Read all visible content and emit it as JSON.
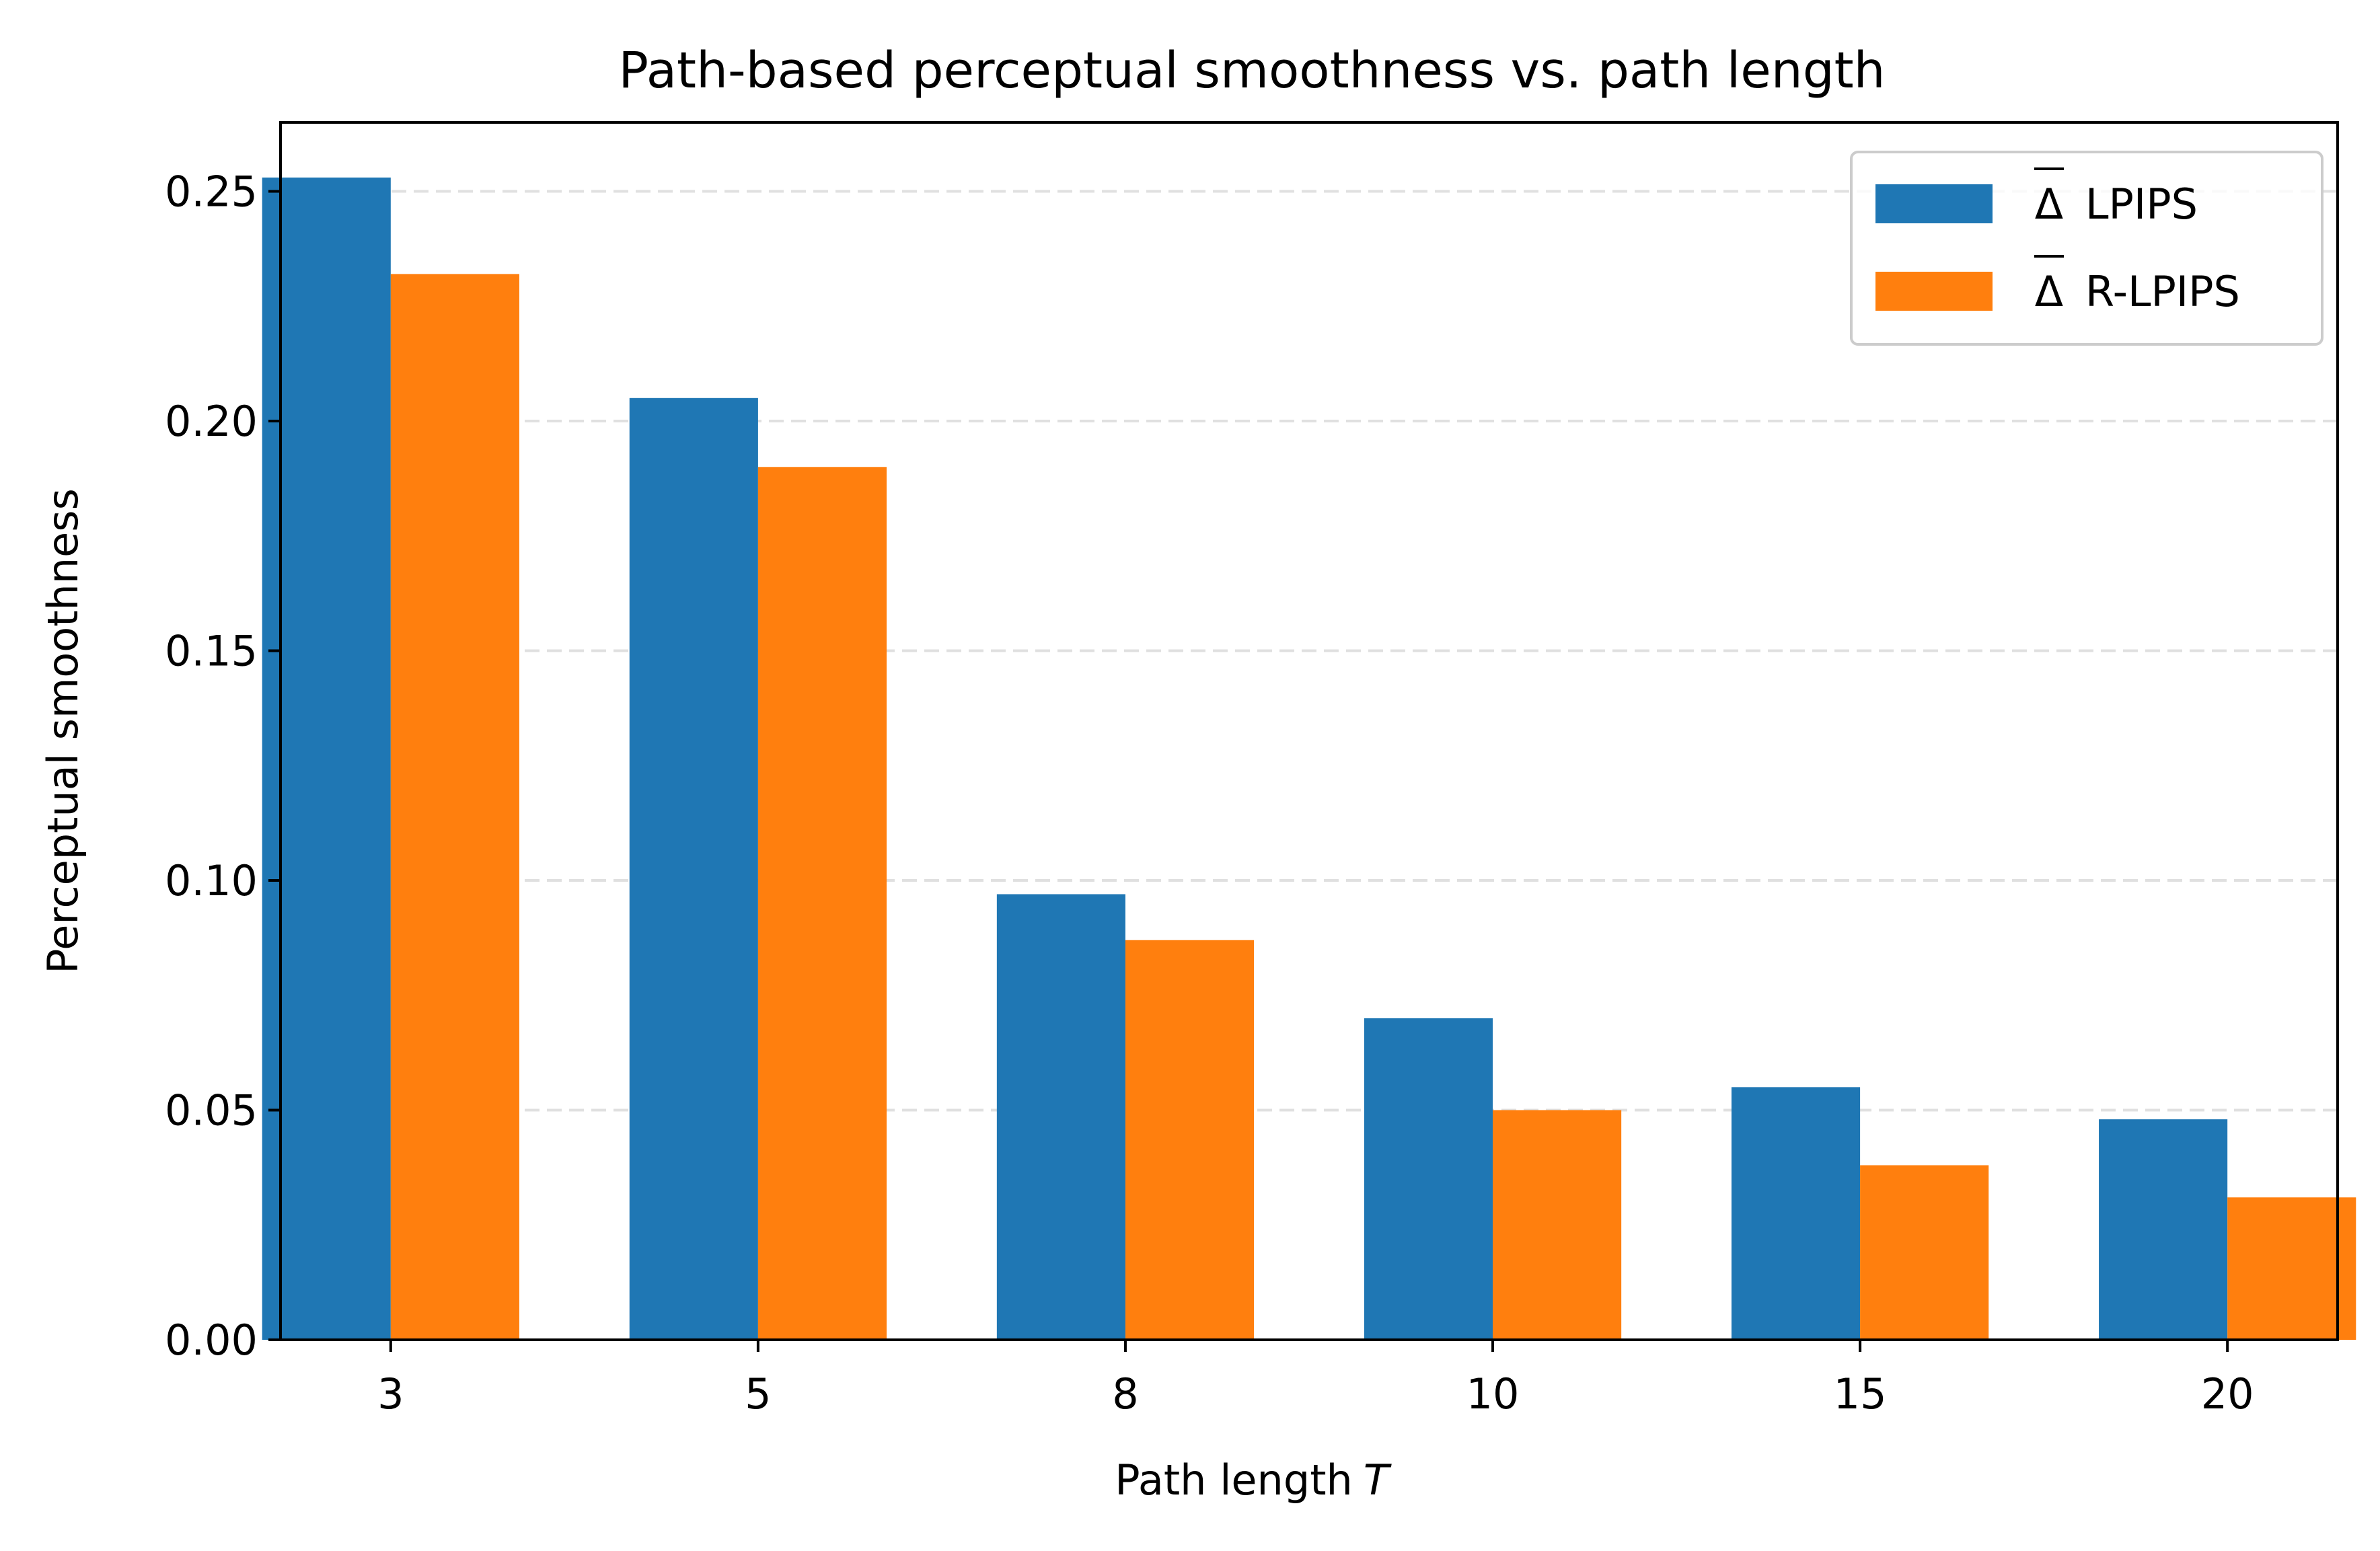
{
  "chart_data": {
    "type": "bar",
    "title": "Path-based perceptual smoothness vs. path length",
    "xlabel": "Path length",
    "xlabel_var": "T",
    "ylabel": "Perceptual smoothness",
    "categories": [
      "3",
      "5",
      "8",
      "10",
      "15",
      "20"
    ],
    "ylim": [
      0,
      0.265
    ],
    "yticks": [
      "0.00",
      "0.05",
      "0.10",
      "0.15",
      "0.20",
      "0.25"
    ],
    "grid": "y, dashed",
    "legend_position": "top-right",
    "series": [
      {
        "name": "LPIPS",
        "symbol": "Δ",
        "color": "#1f77b4",
        "values": [
          0.253,
          0.205,
          0.097,
          0.07,
          0.055,
          0.048
        ]
      },
      {
        "name": "R-LPIPS",
        "symbol": "Δ",
        "color": "#ff7f0e",
        "values": [
          0.232,
          0.19,
          0.087,
          0.05,
          0.038,
          0.031
        ]
      }
    ]
  }
}
